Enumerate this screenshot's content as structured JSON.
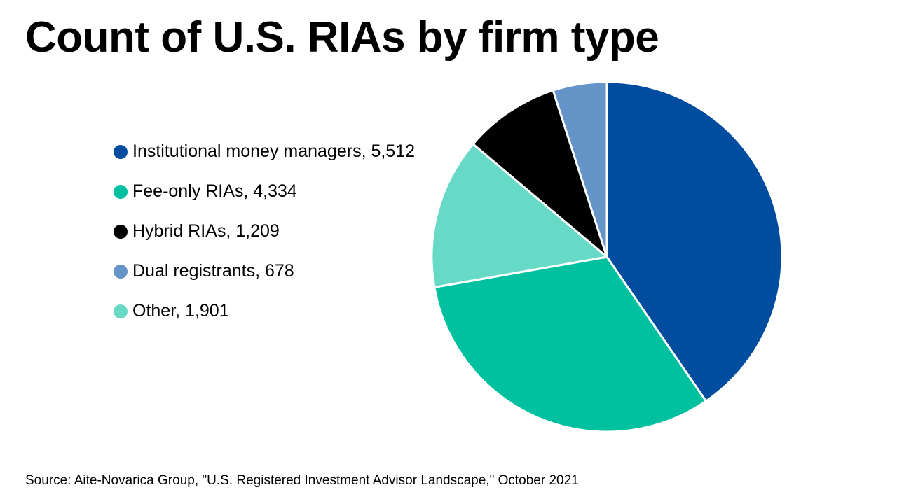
{
  "chart_data": {
    "type": "pie",
    "title": "Count of U.S. RIAs by firm type",
    "series": [
      {
        "name": "Institutional money managers",
        "value": 5512,
        "label": "Institutional money managers, 5,512",
        "color": "#004C9E"
      },
      {
        "name": "Fee-only RIAs",
        "value": 4334,
        "label": "Fee-only RIAs, 4,334",
        "color": "#00C19F"
      },
      {
        "name": "Hybrid RIAs",
        "value": 1209,
        "label": "Hybrid RIAs, 1,209",
        "color": "#000000"
      },
      {
        "name": "Dual registrants",
        "value": 678,
        "label": "Dual registrants, 678",
        "color": "#6594C8"
      },
      {
        "name": "Other",
        "value": 1901,
        "label": "Other, 1,901",
        "color": "#66DAC6"
      }
    ],
    "slice_order_clockwise_from_top": [
      "Institutional money managers",
      "Fee-only RIAs",
      "Other",
      "Hybrid RIAs",
      "Dual registrants"
    ],
    "legend_position": "left"
  },
  "source": "Source: Aite-Novarica Group, \"U.S. Registered Investment Advisor Landscape,\" October 2021"
}
